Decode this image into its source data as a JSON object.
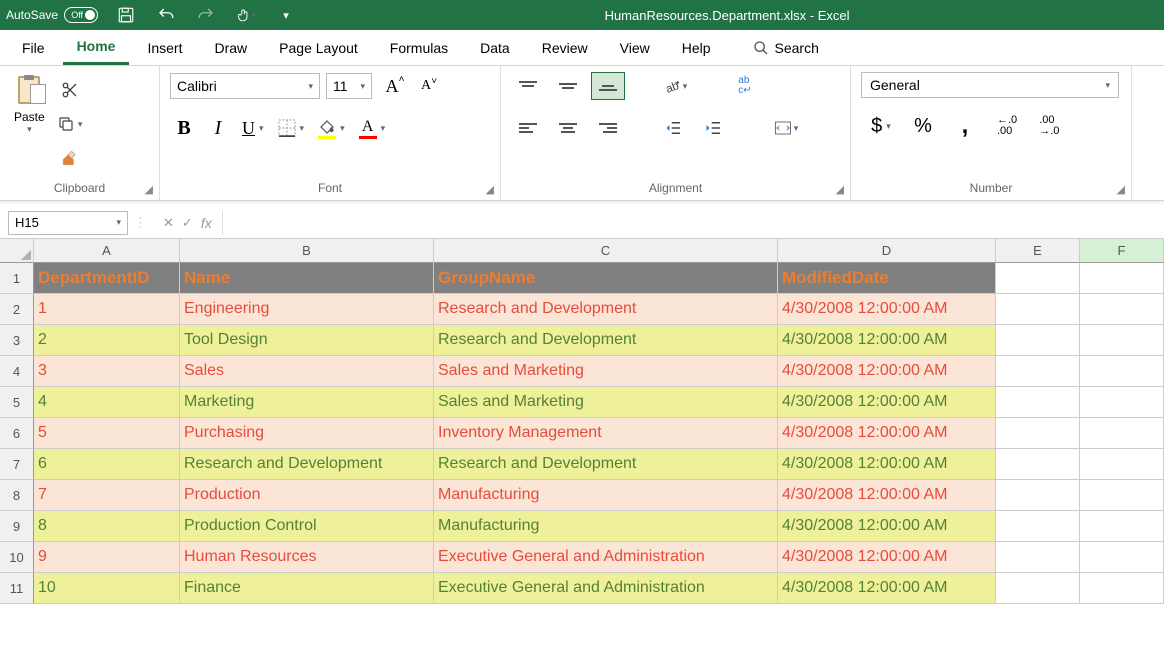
{
  "titlebar": {
    "autosave_label": "AutoSave",
    "autosave_state": "Off",
    "filename": "HumanResources.Department.xlsx - Excel"
  },
  "tabs": {
    "file": "File",
    "home": "Home",
    "insert": "Insert",
    "draw": "Draw",
    "page_layout": "Page Layout",
    "formulas": "Formulas",
    "data": "Data",
    "review": "Review",
    "view": "View",
    "help": "Help",
    "search": "Search"
  },
  "ribbon": {
    "clipboard": {
      "paste": "Paste",
      "group": "Clipboard"
    },
    "font": {
      "group": "Font",
      "name": "Calibri",
      "size": "11",
      "bold": "B",
      "italic": "I",
      "underline": "U",
      "fill_color": "#ffff00",
      "font_color": "#ff0000"
    },
    "alignment": {
      "group": "Alignment"
    },
    "number": {
      "group": "Number",
      "format": "General"
    }
  },
  "formula_bar": {
    "namebox": "H15",
    "fx": "fx"
  },
  "sheet": {
    "col_widths": {
      "A": 146,
      "B": 254,
      "C": 344,
      "D": 218,
      "E": 84,
      "F": 84
    },
    "columns": [
      "A",
      "B",
      "C",
      "D",
      "E",
      "F"
    ],
    "active_col": "F",
    "row_numbers": [
      "1",
      "2",
      "3",
      "4",
      "5",
      "6",
      "7",
      "8",
      "9",
      "10",
      "11"
    ],
    "headers": {
      "A": "DepartmentID",
      "B": "Name",
      "C": "GroupName",
      "D": "ModifiedDate"
    },
    "rows": [
      {
        "A": "1",
        "B": "Engineering",
        "C": "Research and Development",
        "D": "4/30/2008 12:00:00 AM"
      },
      {
        "A": "2",
        "B": "Tool Design",
        "C": "Research and Development",
        "D": "4/30/2008 12:00:00 AM"
      },
      {
        "A": "3",
        "B": "Sales",
        "C": "Sales and Marketing",
        "D": "4/30/2008 12:00:00 AM"
      },
      {
        "A": "4",
        "B": "Marketing",
        "C": "Sales and Marketing",
        "D": "4/30/2008 12:00:00 AM"
      },
      {
        "A": "5",
        "B": "Purchasing",
        "C": "Inventory Management",
        "D": "4/30/2008 12:00:00 AM"
      },
      {
        "A": "6",
        "B": "Research and Development",
        "C": "Research and Development",
        "D": "4/30/2008 12:00:00 AM"
      },
      {
        "A": "7",
        "B": "Production",
        "C": "Manufacturing",
        "D": "4/30/2008 12:00:00 AM"
      },
      {
        "A": "8",
        "B": "Production Control",
        "C": "Manufacturing",
        "D": "4/30/2008 12:00:00 AM"
      },
      {
        "A": "9",
        "B": "Human Resources",
        "C": "Executive General and Administration",
        "D": "4/30/2008 12:00:00 AM"
      },
      {
        "A": "10",
        "B": "Finance",
        "C": "Executive General and Administration",
        "D": "4/30/2008 12:00:00 AM"
      }
    ],
    "colors": {
      "header_bg": "#808080",
      "header_fg": "#ed7d31",
      "odd_bg": "#fbe5d6",
      "odd_fg": "#e74c3c",
      "even_bg": "#eff09a",
      "even_fg": "#548235"
    }
  }
}
